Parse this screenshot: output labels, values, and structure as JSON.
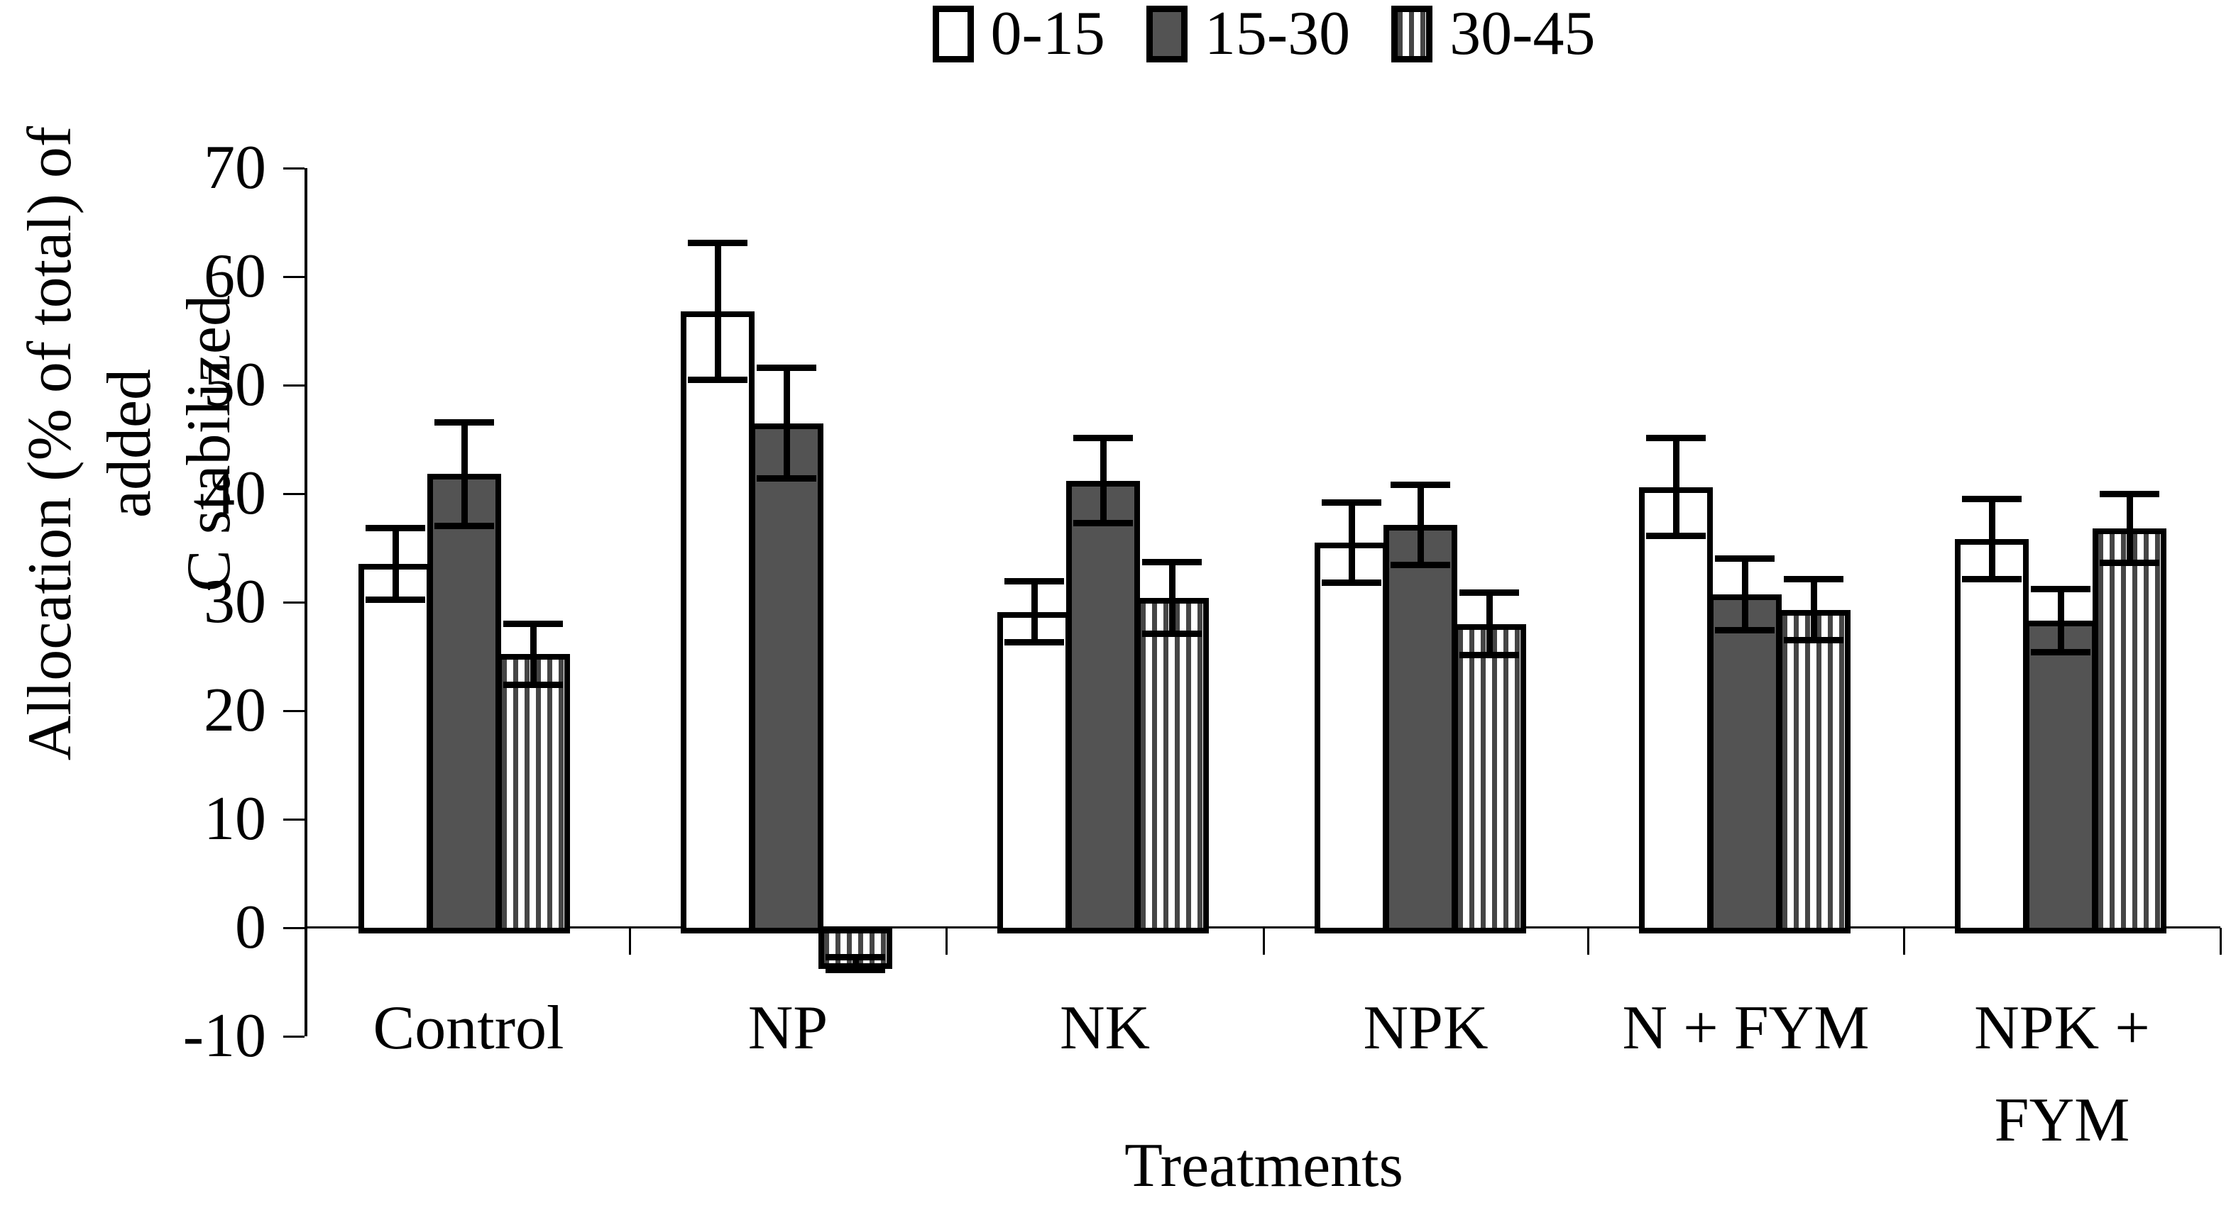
{
  "colors": {
    "background": "#ffffff",
    "bar_white_fill": "#ffffff",
    "bar_dark_fill": "#535353",
    "stripe_dark": "#454545",
    "stripe_light": "#ffffff",
    "line_black": "#000000"
  },
  "legend": {
    "items": [
      {
        "label": "0-15",
        "swatch": "white-square-icon"
      },
      {
        "label": "15-30",
        "swatch": "dark-gray-square-icon"
      },
      {
        "label": "30-45",
        "swatch": "striped-square-icon"
      }
    ]
  },
  "y_axis": {
    "title_line1": "Allocation (% of total) of added",
    "title_line2": "C stabilized",
    "tick_labels": [
      "70",
      "60",
      "50",
      "40",
      "30",
      "20",
      "10",
      "0",
      "-10"
    ],
    "tick_values": [
      70,
      60,
      50,
      40,
      30,
      20,
      10,
      0,
      -10
    ]
  },
  "x_axis": {
    "title": "Treatments",
    "category_label_lines": [
      [
        "Control"
      ],
      [
        "NP"
      ],
      [
        "NK"
      ],
      [
        "NPK"
      ],
      [
        "N + FYM"
      ],
      [
        "NPK +",
        "FYM"
      ]
    ]
  },
  "chart_data": {
    "type": "bar",
    "title": "",
    "xlabel": "Treatments",
    "ylabel": "Allocation (% of total) of added C stabilized",
    "ylim": [
      -10,
      70
    ],
    "ytick_step": 10,
    "grid": false,
    "legend_position": "top-center",
    "error_bars": true,
    "categories": [
      "Control",
      "NP",
      "NK",
      "NPK",
      "N + FYM",
      "NPK + FYM"
    ],
    "series": [
      {
        "name": "0-15",
        "style": "white",
        "values": [
          33.5,
          56.8,
          29.1,
          35.5,
          40.6,
          35.8
        ],
        "errors": [
          3.3,
          6.3,
          2.8,
          3.7,
          4.5,
          3.7
        ]
      },
      {
        "name": "15-30",
        "style": "dark-gray",
        "values": [
          41.8,
          46.5,
          41.2,
          37.1,
          30.7,
          28.3
        ],
        "errors": [
          4.8,
          5.1,
          3.9,
          3.7,
          3.3,
          2.9
        ]
      },
      {
        "name": "30-45",
        "style": "vertical-stripes",
        "values": [
          25.2,
          -3.3,
          30.4,
          28.0,
          29.3,
          36.8
        ],
        "errors": [
          2.8,
          0.6,
          3.3,
          2.9,
          2.8,
          3.2
        ]
      }
    ]
  }
}
